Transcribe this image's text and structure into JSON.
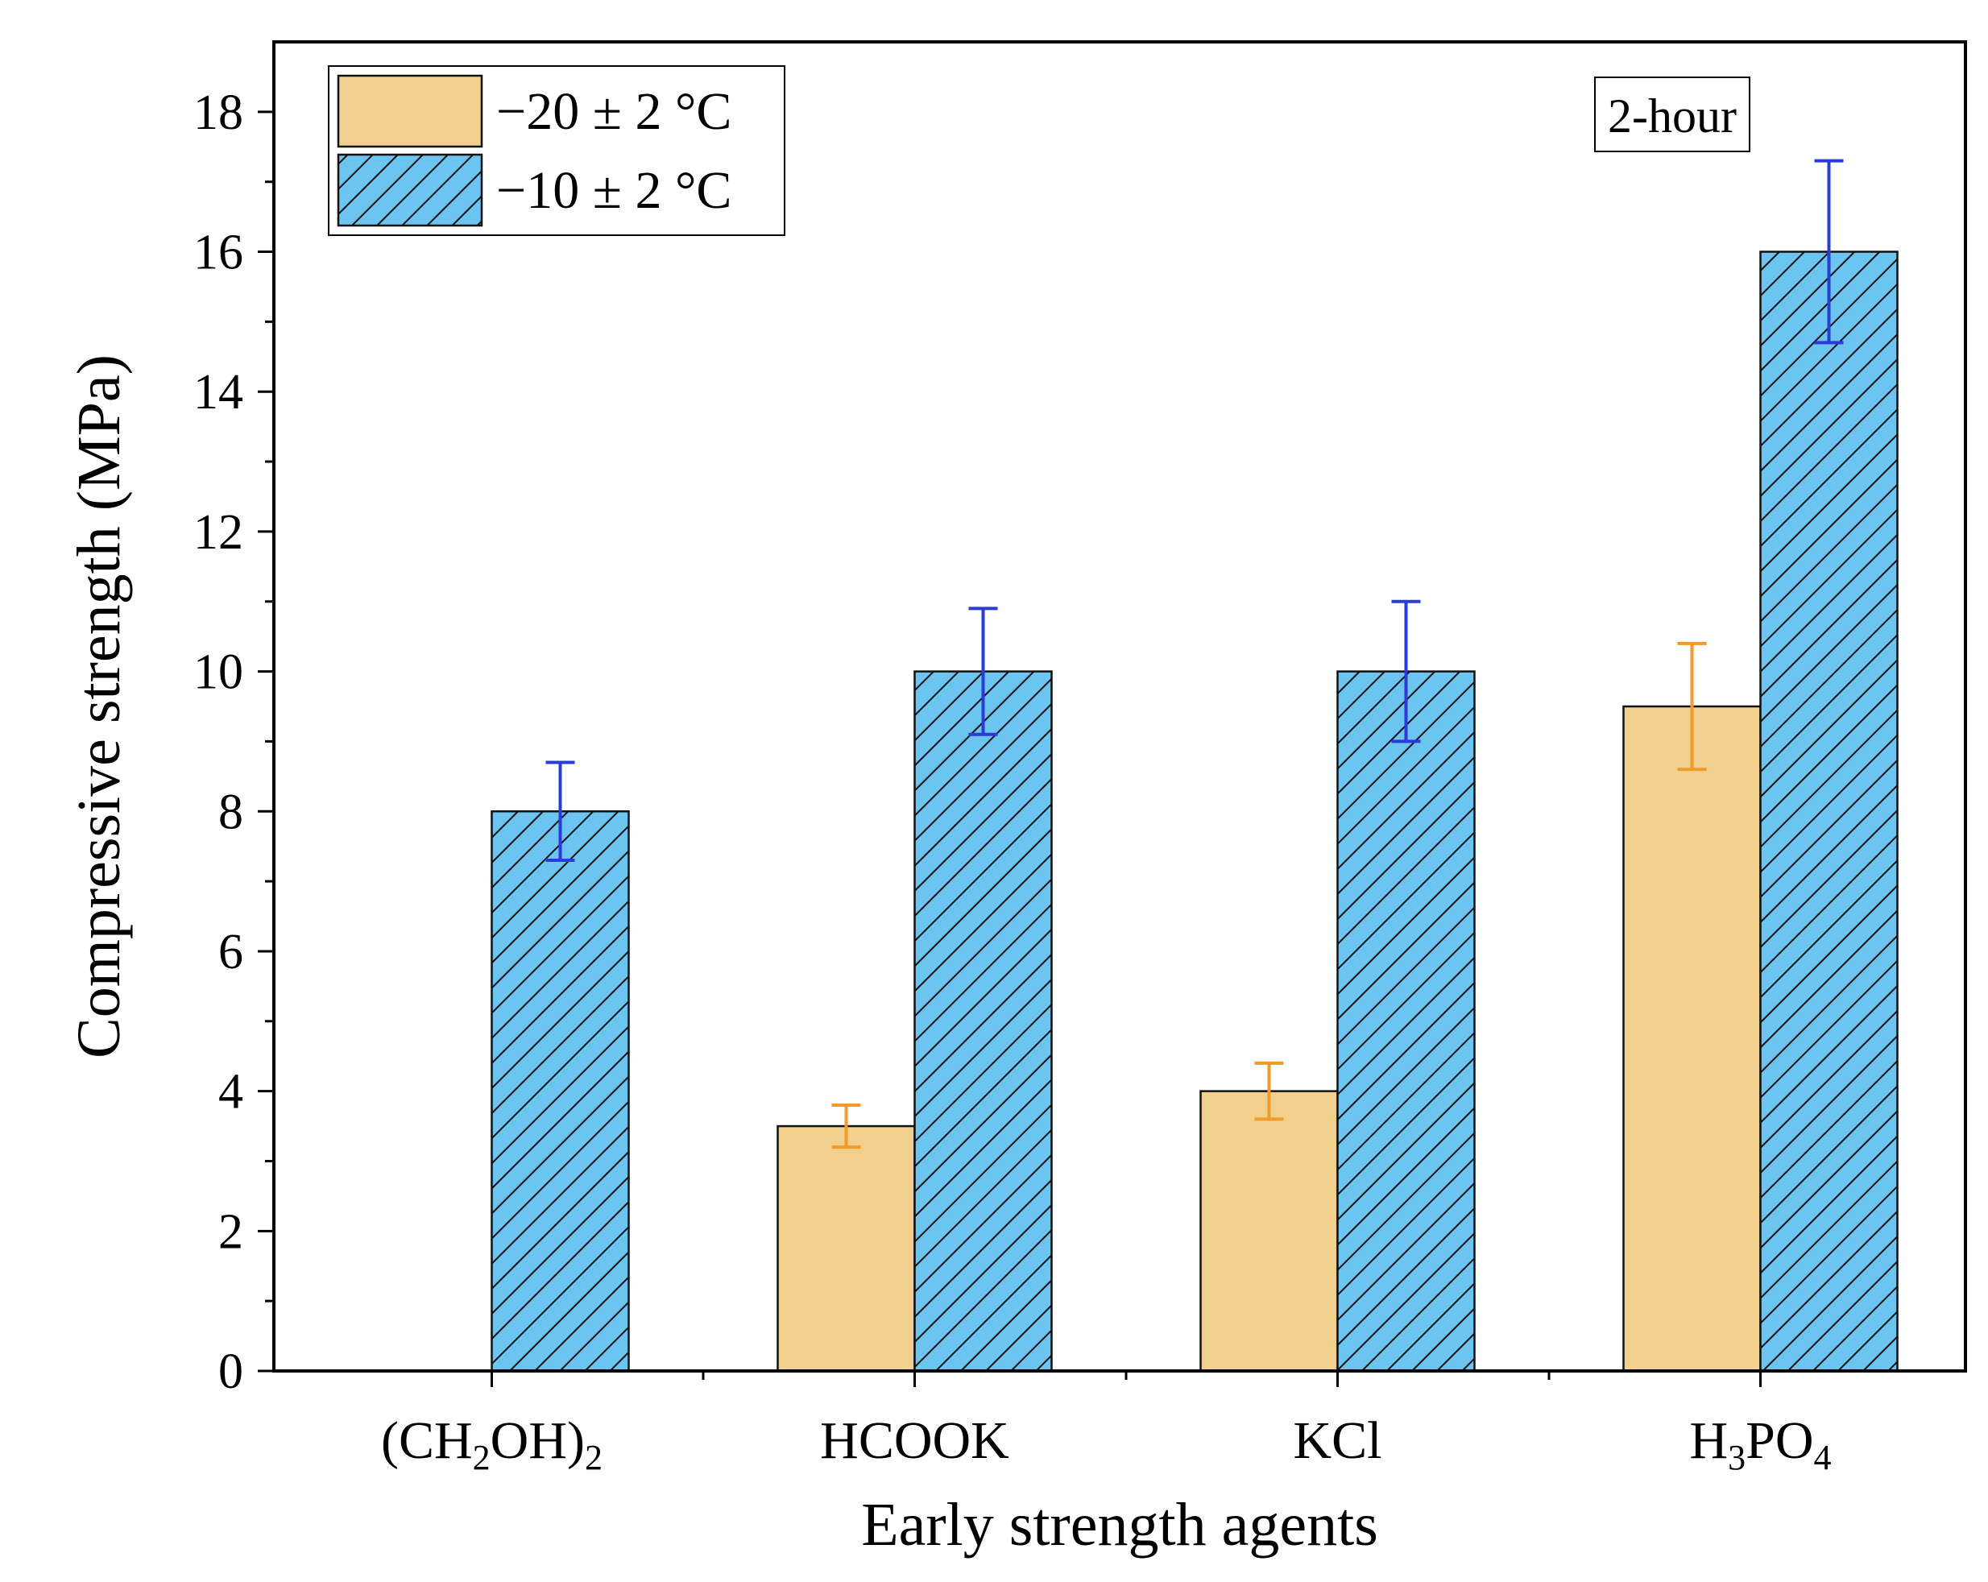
{
  "chart_data": {
    "type": "bar",
    "title": "",
    "annotation": "2-hour",
    "xlabel": "Early strength agents",
    "ylabel": "Compressive strength (MPa)",
    "ylim": [
      0,
      19
    ],
    "yticks": [
      0,
      2,
      4,
      6,
      8,
      10,
      12,
      14,
      16,
      18
    ],
    "categories": [
      {
        "label": "(CH2OH)2",
        "parts": [
          [
            "(CH",
            false
          ],
          [
            "2",
            true
          ],
          [
            "OH)",
            false
          ],
          [
            "2",
            true
          ]
        ]
      },
      {
        "label": "HCOOK",
        "parts": [
          [
            "HCOOK",
            false
          ]
        ]
      },
      {
        "label": "KCl",
        "parts": [
          [
            "KCl",
            false
          ]
        ]
      },
      {
        "label": "H3PO4",
        "parts": [
          [
            "H",
            false
          ],
          [
            "3",
            true
          ],
          [
            "PO",
            false
          ],
          [
            "4",
            true
          ]
        ]
      }
    ],
    "series": [
      {
        "name": "−20 ± 2 °C",
        "color": "#f0d08c",
        "error_color": "#f39a2b",
        "pattern": "solid",
        "values": [
          0,
          3.5,
          4.0,
          9.5
        ],
        "errors": [
          0,
          0.3,
          0.4,
          0.9
        ]
      },
      {
        "name": "−10 ± 2 °C",
        "color": "#6cc4f0",
        "error_color": "#2a3bd6",
        "pattern": "hatched",
        "values": [
          8.0,
          10.0,
          10.0,
          16.0
        ],
        "errors": [
          0.7,
          0.9,
          1.0,
          1.3
        ]
      }
    ],
    "legend_position": "top-left",
    "grid": false
  }
}
